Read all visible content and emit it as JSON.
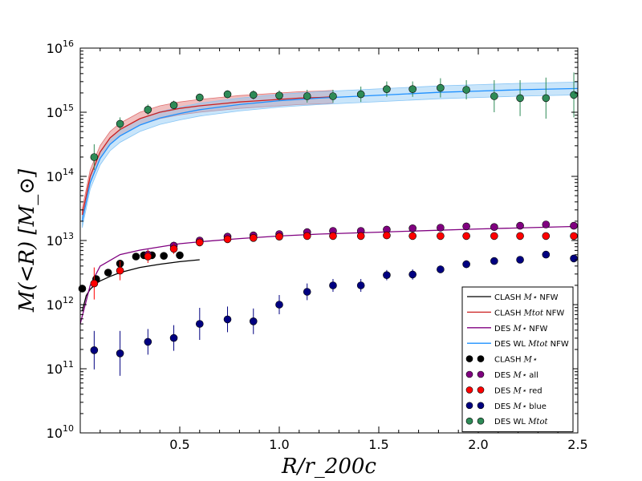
{
  "chart_data": {
    "type": "scatter",
    "title": "",
    "xlabel": "R/r_200c",
    "ylabel": "M(<R) [M_⊙]",
    "xlim": [
      0.0,
      2.5
    ],
    "ylim_log10": [
      10,
      16
    ],
    "yscale": "log",
    "x_tick_labels": [
      "0.5",
      "1.0",
      "1.5",
      "2.0",
      "2.5"
    ],
    "x_tick_values": [
      0.5,
      1.0,
      1.5,
      2.0,
      2.5
    ],
    "y_tick_labels": [
      {
        "base": "10",
        "exp": "10",
        "value": 10
      },
      {
        "base": "10",
        "exp": "11",
        "value": 11
      },
      {
        "base": "10",
        "exp": "12",
        "value": 12
      },
      {
        "base": "10",
        "exp": "13",
        "value": 13
      },
      {
        "base": "10",
        "exp": "14",
        "value": 14
      },
      {
        "base": "10",
        "exp": "15",
        "value": 15
      },
      {
        "base": "10",
        "exp": "16",
        "value": 16
      }
    ],
    "legend_position": "lower-right",
    "series": [
      {
        "name": "CLASH M⋆ NFW",
        "label_main": "CLASH ",
        "label_math": "M⋆",
        "label_tail": " NFW",
        "kind": "line",
        "color": "#000000",
        "x": [
          0.01,
          0.03,
          0.05,
          0.08,
          0.1,
          0.15,
          0.2,
          0.3,
          0.4,
          0.5,
          0.6
        ],
        "log10_y": [
          11.9,
          12.14,
          12.24,
          12.33,
          12.37,
          12.44,
          12.5,
          12.58,
          12.63,
          12.67,
          12.7
        ]
      },
      {
        "name": "CLASH M_tot NFW",
        "label_main": "CLASH ",
        "label_math": "Mtot",
        "label_tail": " NFW",
        "kind": "line",
        "color": "#cc2020",
        "band_color": "#e07070",
        "x": [
          0.01,
          0.05,
          0.1,
          0.15,
          0.2,
          0.3,
          0.4,
          0.5,
          0.6,
          0.7,
          0.8,
          0.9,
          1.0,
          1.1,
          1.2,
          1.27
        ],
        "log10_y": [
          13.4,
          14.0,
          14.38,
          14.6,
          14.73,
          14.9,
          15.0,
          15.06,
          15.1,
          15.13,
          15.16,
          15.18,
          15.2,
          15.22,
          15.23,
          15.24
        ],
        "band_log10_half_width": [
          0.1,
          0.1,
          0.1,
          0.1,
          0.1,
          0.1,
          0.1,
          0.1,
          0.1,
          0.1,
          0.1,
          0.1,
          0.1,
          0.1,
          0.1,
          0.1
        ]
      },
      {
        "name": "DES M⋆ NFW",
        "label_main": "DES ",
        "label_math": "M⋆",
        "label_tail": " NFW",
        "kind": "line",
        "color": "#800080",
        "x": [
          0.0,
          0.05,
          0.1,
          0.2,
          0.3,
          0.4,
          0.5,
          0.6,
          0.8,
          1.0,
          1.2,
          1.5,
          2.0,
          2.5
        ],
        "log10_y": [
          11.7,
          12.3,
          12.6,
          12.78,
          12.85,
          12.9,
          12.95,
          12.98,
          13.03,
          13.07,
          13.1,
          13.13,
          13.18,
          13.22
        ]
      },
      {
        "name": "DES WL M_tot NFW",
        "label_main": "DES WL ",
        "label_math": "Mtot",
        "label_tail": " NFW",
        "kind": "line",
        "color": "#1e90ff",
        "band_color": "#87c5f5",
        "x": [
          0.01,
          0.05,
          0.1,
          0.15,
          0.2,
          0.3,
          0.4,
          0.5,
          0.6,
          0.8,
          1.0,
          1.2,
          1.4,
          1.6,
          1.8,
          2.0,
          2.2,
          2.5
        ],
        "log10_y": [
          13.3,
          13.9,
          14.28,
          14.5,
          14.63,
          14.8,
          14.91,
          14.98,
          15.04,
          15.12,
          15.18,
          15.22,
          15.25,
          15.28,
          15.31,
          15.33,
          15.35,
          15.37
        ],
        "band_log10_half_width": [
          0.1,
          0.1,
          0.1,
          0.1,
          0.1,
          0.1,
          0.1,
          0.1,
          0.1,
          0.1,
          0.1,
          0.1,
          0.1,
          0.1,
          0.1,
          0.1,
          0.1,
          0.1
        ]
      },
      {
        "name": "CLASH M⋆",
        "label_main": "CLASH ",
        "label_math": "M⋆",
        "label_tail": "",
        "kind": "points",
        "color": "#000000",
        "x": [
          0.01,
          0.08,
          0.14,
          0.2,
          0.28,
          0.32,
          0.36,
          0.42,
          0.5
        ],
        "log10_y": [
          12.25,
          12.4,
          12.5,
          12.64,
          12.75,
          12.77,
          12.77,
          12.76,
          12.77
        ],
        "err_log10": [
          0,
          0,
          0,
          0,
          0,
          0,
          0,
          0,
          0
        ]
      },
      {
        "name": "DES M⋆ all",
        "label_main": "DES ",
        "label_math": "M⋆",
        "label_tail": " all",
        "kind": "points",
        "color": "#800080",
        "x": [
          0.34,
          0.47,
          0.6,
          0.74,
          0.87,
          1.0,
          1.14,
          1.27,
          1.41,
          1.54,
          1.67,
          1.81,
          1.94,
          2.08,
          2.21,
          2.34,
          2.48
        ],
        "log10_y": [
          12.78,
          12.92,
          13.0,
          13.06,
          13.08,
          13.1,
          13.13,
          13.15,
          13.15,
          13.17,
          13.19,
          13.2,
          13.22,
          13.21,
          13.23,
          13.25,
          13.23
        ],
        "err_log10": [
          0.08,
          0.06,
          0.05,
          0.04,
          0.04,
          0.03,
          0.03,
          0.03,
          0.03,
          0.03,
          0.03,
          0.03,
          0.03,
          0.03,
          0.03,
          0.03,
          0.03
        ]
      },
      {
        "name": "DES M⋆ red",
        "label_main": "DES ",
        "label_math": "M⋆",
        "label_tail": " red",
        "kind": "points",
        "color": "#ff0000",
        "x": [
          0.07,
          0.2,
          0.34,
          0.47,
          0.6,
          0.74,
          0.87,
          1.0,
          1.14,
          1.27,
          1.41,
          1.54,
          1.67,
          1.81,
          1.94,
          2.08,
          2.21,
          2.34,
          2.48
        ],
        "log10_y": [
          12.33,
          12.53,
          12.75,
          12.87,
          12.97,
          13.02,
          13.04,
          13.06,
          13.07,
          13.07,
          13.07,
          13.08,
          13.07,
          13.07,
          13.07,
          13.07,
          13.07,
          13.07,
          13.07
        ],
        "err_log10": [
          0.25,
          0.15,
          0.1,
          0.08,
          0.06,
          0.05,
          0.04,
          0.03,
          0.03,
          0.03,
          0.03,
          0.03,
          0.03,
          0.03,
          0.03,
          0.03,
          0.03,
          0.03,
          0.03
        ]
      },
      {
        "name": "DES M⋆ blue",
        "label_main": "DES ",
        "label_math": "M⋆",
        "label_tail": " blue",
        "kind": "points",
        "color": "#000080",
        "x": [
          0.07,
          0.2,
          0.34,
          0.47,
          0.6,
          0.74,
          0.87,
          1.0,
          1.14,
          1.27,
          1.41,
          1.54,
          1.67,
          1.81,
          1.94,
          2.08,
          2.21,
          2.34,
          2.48
        ],
        "log10_y": [
          11.29,
          11.24,
          11.42,
          11.48,
          11.7,
          11.77,
          11.74,
          12.0,
          12.2,
          12.3,
          12.3,
          12.46,
          12.47,
          12.55,
          12.63,
          12.68,
          12.7,
          12.78,
          12.72
        ],
        "err_log10": [
          0.3,
          0.35,
          0.2,
          0.2,
          0.25,
          0.2,
          0.2,
          0.15,
          0.13,
          0.1,
          0.1,
          0.08,
          0.08,
          0.06,
          0.06,
          0.05,
          0.05,
          0.05,
          0.05
        ]
      },
      {
        "name": "DES WL M_tot",
        "label_main": "DES WL ",
        "label_math": "Mtot",
        "label_tail": "",
        "kind": "points",
        "color": "#2e8b57",
        "x": [
          0.07,
          0.2,
          0.34,
          0.47,
          0.6,
          0.74,
          0.87,
          1.0,
          1.14,
          1.27,
          1.41,
          1.54,
          1.67,
          1.81,
          1.94,
          2.08,
          2.21,
          2.34,
          2.48
        ],
        "log10_y": [
          14.3,
          14.82,
          15.04,
          15.11,
          15.23,
          15.28,
          15.27,
          15.26,
          15.25,
          15.25,
          15.28,
          15.36,
          15.36,
          15.38,
          15.35,
          15.25,
          15.22,
          15.22,
          15.27
        ],
        "err_log10": [
          0.2,
          0.1,
          0.08,
          0.07,
          0.06,
          0.06,
          0.07,
          0.08,
          0.1,
          0.1,
          0.12,
          0.12,
          0.12,
          0.15,
          0.15,
          0.25,
          0.28,
          0.32,
          0.35
        ]
      }
    ]
  }
}
